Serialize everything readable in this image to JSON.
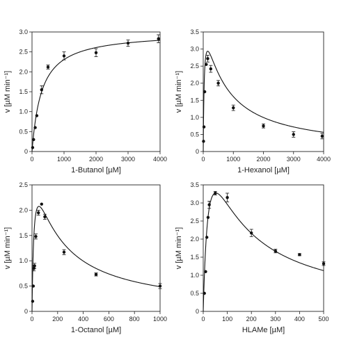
{
  "chart_data": [
    {
      "type": "scatter",
      "xlabel": "1-Butanol [µM]",
      "ylabel": "v [µM min⁻¹]",
      "xlim": [
        0,
        4000
      ],
      "ylim": [
        0,
        3.0
      ],
      "xticks": [
        0,
        1000,
        2000,
        3000,
        4000
      ],
      "yticks": [
        0,
        0.5,
        1.0,
        1.5,
        2.0,
        2.5,
        3.0
      ],
      "ytick_labels": [
        "0",
        "0.5",
        "1.0",
        "1.5",
        "2.0",
        "2.5",
        "3.0"
      ],
      "model": {
        "kind": "michaelis-menten",
        "vmax": 3.0,
        "km": 300
      },
      "points": [
        {
          "x": 20,
          "y": 0.1,
          "err": 0
        },
        {
          "x": 50,
          "y": 0.3,
          "err": 0
        },
        {
          "x": 100,
          "y": 0.6,
          "err": 0
        },
        {
          "x": 150,
          "y": 0.9,
          "err": 0
        },
        {
          "x": 300,
          "y": 1.55,
          "err": 0.1
        },
        {
          "x": 500,
          "y": 2.12,
          "err": 0.05
        },
        {
          "x": 1000,
          "y": 2.4,
          "err": 0.1
        },
        {
          "x": 2000,
          "y": 2.48,
          "err": 0.1
        },
        {
          "x": 3000,
          "y": 2.72,
          "err": 0.08
        },
        {
          "x": 3950,
          "y": 2.83,
          "err": 0.1
        }
      ]
    },
    {
      "type": "scatter",
      "xlabel": "1-Hexanol [µM]",
      "ylabel": "v [µM min⁻¹]",
      "xlim": [
        0,
        4000
      ],
      "ylim": [
        0,
        3.5
      ],
      "xticks": [
        0,
        1000,
        2000,
        3000,
        4000
      ],
      "yticks": [
        0,
        0.5,
        1.0,
        1.5,
        2.0,
        2.5,
        3.0,
        3.5
      ],
      "ytick_labels": [
        "0",
        "0.5",
        "1.0",
        "1.5",
        "2.0",
        "2.5",
        "3.0",
        "3.5"
      ],
      "model": {
        "kind": "substrate-inhibition",
        "vmax": 4.42,
        "km": 37.3,
        "ki": 585
      },
      "points": [
        {
          "x": 10,
          "y": 0.3,
          "err": 0
        },
        {
          "x": 25,
          "y": 0.72,
          "err": 0
        },
        {
          "x": 50,
          "y": 1.75,
          "err": 0
        },
        {
          "x": 100,
          "y": 2.55,
          "err": 0
        },
        {
          "x": 150,
          "y": 2.72,
          "err": 0.1
        },
        {
          "x": 250,
          "y": 2.42,
          "err": 0.1
        },
        {
          "x": 500,
          "y": 2.0,
          "err": 0.08
        },
        {
          "x": 1000,
          "y": 1.28,
          "err": 0.08
        },
        {
          "x": 2000,
          "y": 0.75,
          "err": 0.06
        },
        {
          "x": 3000,
          "y": 0.5,
          "err": 0.08
        },
        {
          "x": 3950,
          "y": 0.45,
          "err": 0.08
        }
      ]
    },
    {
      "type": "scatter",
      "xlabel": "1-Octanol [µM]",
      "ylabel": "v [µM min⁻¹]",
      "xlim": [
        0,
        1000
      ],
      "ylim": [
        0,
        2.5
      ],
      "xticks": [
        0,
        200,
        400,
        600,
        800,
        1000
      ],
      "yticks": [
        0,
        0.5,
        1.0,
        1.5,
        2.0,
        2.5
      ],
      "ytick_labels": [
        "0",
        "0.5",
        "1.0",
        "1.5",
        "2.0",
        "2.5"
      ],
      "model": {
        "kind": "substrate-inhibition",
        "vmax": 3.42,
        "km": 17.5,
        "ki": 167
      },
      "points": [
        {
          "x": 5,
          "y": 0.2,
          "err": 0
        },
        {
          "x": 10,
          "y": 0.5,
          "err": 0
        },
        {
          "x": 15,
          "y": 0.85,
          "err": 0.05
        },
        {
          "x": 20,
          "y": 0.9,
          "err": 0.05
        },
        {
          "x": 30,
          "y": 1.48,
          "err": 0.05
        },
        {
          "x": 50,
          "y": 1.95,
          "err": 0.05
        },
        {
          "x": 75,
          "y": 2.12,
          "err": 0
        },
        {
          "x": 100,
          "y": 1.87,
          "err": 0.05
        },
        {
          "x": 250,
          "y": 1.17,
          "err": 0.05
        },
        {
          "x": 500,
          "y": 0.73,
          "err": 0.03
        },
        {
          "x": 1000,
          "y": 0.5,
          "err": 0.05
        }
      ]
    },
    {
      "type": "scatter",
      "xlabel": "HLAMe [µM]",
      "ylabel": "v [µM min⁻¹]",
      "xlim": [
        0,
        500
      ],
      "ylim": [
        0,
        3.5
      ],
      "xticks": [
        0,
        100,
        200,
        300,
        400,
        500
      ],
      "yticks": [
        0,
        0.5,
        1.0,
        1.5,
        2.0,
        2.5,
        3.0,
        3.5
      ],
      "ytick_labels": [
        "0",
        "0.5",
        "1.0",
        "1.5",
        "2.0",
        "2.5",
        "3.0",
        "3.5"
      ],
      "model": {
        "kind": "substrate-inhibition",
        "vmax": 6.56,
        "km": 26.4,
        "ki": 105
      },
      "points": [
        {
          "x": 5,
          "y": 0.5,
          "err": 0
        },
        {
          "x": 10,
          "y": 1.1,
          "err": 0
        },
        {
          "x": 15,
          "y": 2.05,
          "err": 0
        },
        {
          "x": 20,
          "y": 2.6,
          "err": 0
        },
        {
          "x": 25,
          "y": 2.95,
          "err": 0.1
        },
        {
          "x": 50,
          "y": 3.27,
          "err": 0.05
        },
        {
          "x": 100,
          "y": 3.15,
          "err": 0.12
        },
        {
          "x": 200,
          "y": 2.17,
          "err": 0.1
        },
        {
          "x": 300,
          "y": 1.67,
          "err": 0.05
        },
        {
          "x": 400,
          "y": 1.57,
          "err": 0.03
        },
        {
          "x": 500,
          "y": 1.32,
          "err": 0.05
        }
      ]
    }
  ]
}
